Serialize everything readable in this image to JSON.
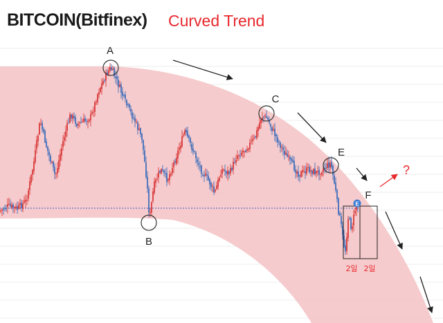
{
  "title": "BITCOIN(Bitfinex)",
  "subtitle": "Curved Trend",
  "colors": {
    "band": "#f4c2c4",
    "bull": "#d62728",
    "bear": "#2a63b8",
    "support": "#3a5fc0",
    "arrow": "#222222",
    "question_arrow": "#e8282d",
    "badge": "#3b7bd4"
  },
  "chart_data": {
    "type": "candlestick",
    "title": "BITCOIN(Bitfinex)",
    "subtitle": "Curved Trend",
    "grid": true,
    "wave_points": [
      {
        "label": "A"
      },
      {
        "label": "B"
      },
      {
        "label": "C"
      },
      {
        "label": "E"
      },
      {
        "label": "F"
      }
    ],
    "annotations": {
      "question": "?",
      "box_labels": [
        "2일",
        "2일"
      ],
      "badge": "E"
    },
    "support_line": true,
    "curved_band": true
  }
}
